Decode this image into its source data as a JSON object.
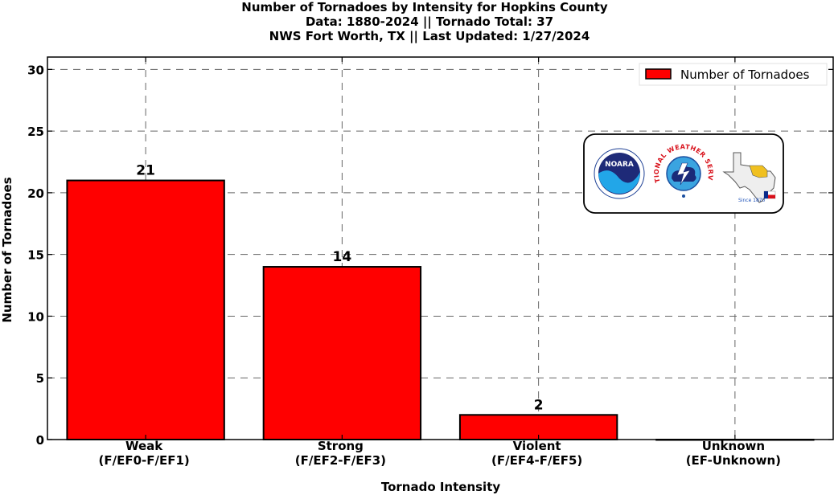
{
  "chart_data": {
    "type": "bar",
    "title_lines": [
      "Number of Tornadoes by Intensity for Hopkins County",
      "Data: 1880-2024 || Tornado Total: 37",
      "NWS Fort Worth, TX || Last Updated: 1/27/2024"
    ],
    "xlabel": "Tornado Intensity",
    "ylabel": "Number of Tornadoes",
    "categories": [
      [
        "Weak",
        "(F/EF0-F/EF1)"
      ],
      [
        "Strong",
        "(F/EF2-F/EF3)"
      ],
      [
        "Violent",
        "(F/EF4-F/EF5)"
      ],
      [
        "Unknown",
        "(EF-Unknown)"
      ]
    ],
    "series": [
      {
        "name": "Number of Tornadoes",
        "values": [
          21,
          14,
          2,
          0
        ],
        "color": "#ff0000"
      }
    ],
    "data_labels": [
      "21",
      "14",
      "2",
      ""
    ],
    "ylim": [
      0,
      31
    ],
    "yticks": [
      0,
      5,
      10,
      15,
      20,
      25,
      30
    ],
    "grid": true,
    "legend_position": "top-right"
  },
  "logos": {
    "noaa": "NOARA",
    "nws_arc": "NATIONAL WEATHER SERVICE",
    "texas_since": "Since 1870"
  }
}
